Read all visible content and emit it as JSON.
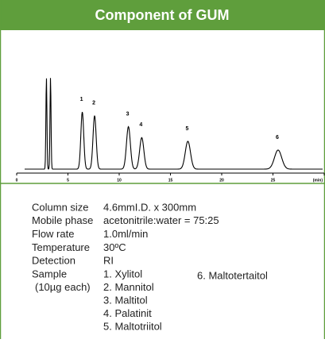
{
  "header": {
    "title": "Component of GUM"
  },
  "chart_data": {
    "type": "chromatogram",
    "x": [
      2.9,
      3.3,
      6.4,
      7.6,
      10.9,
      12.2,
      16.7,
      25.5
    ],
    "values": [
      125,
      125,
      78,
      73,
      58,
      43,
      38,
      26
    ],
    "labels": [
      null,
      null,
      "1",
      "2",
      "3",
      "4",
      "5",
      "6"
    ],
    "color": "#000000",
    "xlim": [
      0,
      30
    ],
    "xticks": [
      0,
      5,
      10,
      15,
      20,
      25,
      {
        "value": 30,
        "label": "(min)"
      }
    ],
    "ylim": [
      0,
      130
    ]
  },
  "conditions": {
    "rows": [
      [
        "Column size",
        "4.6mmI.D. x 300mm"
      ],
      [
        "Mobile phase",
        "acetonitrile:water = 75:25"
      ],
      [
        "Flow rate",
        "1.0ml/min"
      ],
      [
        "Temperature",
        "30ºC"
      ],
      [
        "Detection",
        "RI"
      ]
    ],
    "sample": {
      "label": "Sample",
      "note": "(10µg each)",
      "items": [
        "1. Xylitol",
        "2. Mannitol",
        "3. Maltitol",
        "4. Palatinit",
        "5. Maltotriitol"
      ],
      "extra": "6. Maltotertaitol"
    }
  }
}
